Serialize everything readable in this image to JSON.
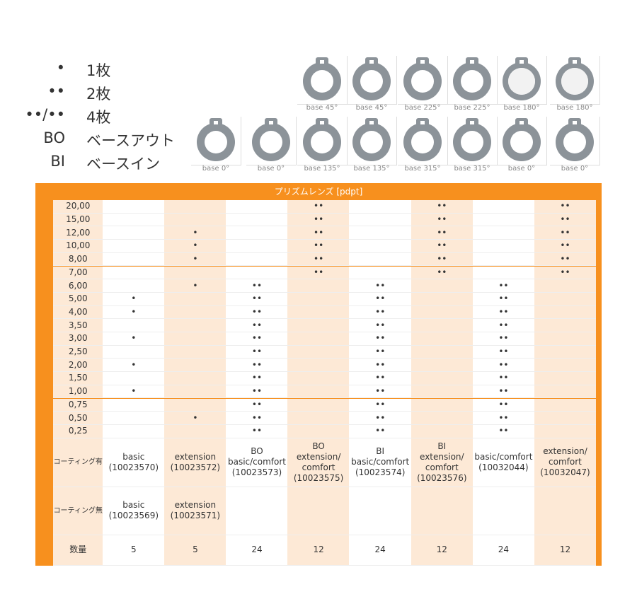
{
  "legend": [
    {
      "symbol": "•",
      "label": "1枚"
    },
    {
      "symbol": "••",
      "label": "2枚"
    },
    {
      "symbol": "••/••",
      "label": "4枚"
    },
    {
      "symbol": "BO",
      "label": "ベースアウト"
    },
    {
      "symbol": "BI",
      "label": "ベースイン"
    }
  ],
  "lenses": {
    "top": [
      "base 45°",
      "base 45°",
      "base 225°",
      "base 225°",
      "base 180°",
      "base 180°"
    ],
    "bottom": [
      "base 0°",
      "base 0°",
      "base 135°",
      "base 135°",
      "base 315°",
      "base 315°",
      "base 0°",
      "base 0°"
    ]
  },
  "table": {
    "title": "プリズムレンズ [pdpt]",
    "rows": [
      [
        "20,00",
        null,
        null,
        null,
        "••",
        null,
        "••",
        null,
        "••"
      ],
      [
        "15,00",
        null,
        null,
        null,
        "••",
        null,
        "••",
        null,
        "••"
      ],
      [
        "12,00",
        null,
        "•",
        null,
        "••",
        null,
        "••",
        null,
        "••"
      ],
      [
        "10,00",
        null,
        "•",
        null,
        "••",
        null,
        "••",
        null,
        "••"
      ],
      [
        "8,00",
        null,
        "•",
        null,
        "••",
        null,
        "••",
        null,
        "••"
      ],
      [
        "7,00",
        null,
        null,
        null,
        "••",
        null,
        "••",
        null,
        "••"
      ],
      [
        "6,00",
        null,
        "•",
        "••",
        null,
        "••",
        null,
        "••",
        null
      ],
      [
        "5,00",
        "•",
        null,
        "••",
        null,
        "••",
        null,
        "••",
        null
      ],
      [
        "4,00",
        "•",
        null,
        "••",
        null,
        "••",
        null,
        "••",
        null
      ],
      [
        "3,50",
        null,
        null,
        "••",
        null,
        "••",
        null,
        "••",
        null
      ],
      [
        "3,00",
        "•",
        null,
        "••",
        null,
        "••",
        null,
        "••",
        null
      ],
      [
        "2,50",
        null,
        null,
        "••",
        null,
        "••",
        null,
        "••",
        null
      ],
      [
        "2,00",
        "•",
        null,
        "••",
        null,
        "••",
        null,
        "••",
        null
      ],
      [
        "1,50",
        null,
        null,
        "••",
        null,
        "••",
        null,
        "••",
        null
      ],
      [
        "1,00",
        "•",
        null,
        "••",
        null,
        "••",
        null,
        "••",
        null
      ],
      [
        "0,75",
        null,
        null,
        "••",
        null,
        "••",
        null,
        "••",
        null
      ],
      [
        "0,50",
        null,
        "•",
        "••",
        null,
        "••",
        null,
        "••",
        null
      ],
      [
        "0,25",
        null,
        null,
        "••",
        null,
        "••",
        null,
        "••",
        null
      ]
    ],
    "coated": [
      "コーティング有",
      "basic\n(10023570)",
      "extension\n(10023572)",
      "BO\nbasic/comfort\n(10023573)",
      "BO\nextension/\ncomfort\n(10023575)",
      "BI\nbasic/comfort\n(10023574)",
      "BI\nextension/\ncomfort\n(10023576)",
      "basic/comfort\n(10032044)",
      "extension/\ncomfort\n(10032047)"
    ],
    "uncoated": [
      "コーティング無",
      "basic\n(10023569)",
      "extension\n(10023571)",
      null,
      null,
      null,
      null,
      null,
      null
    ],
    "quantity": [
      "数量",
      5,
      5,
      24,
      12,
      24,
      12,
      24,
      12
    ]
  }
}
